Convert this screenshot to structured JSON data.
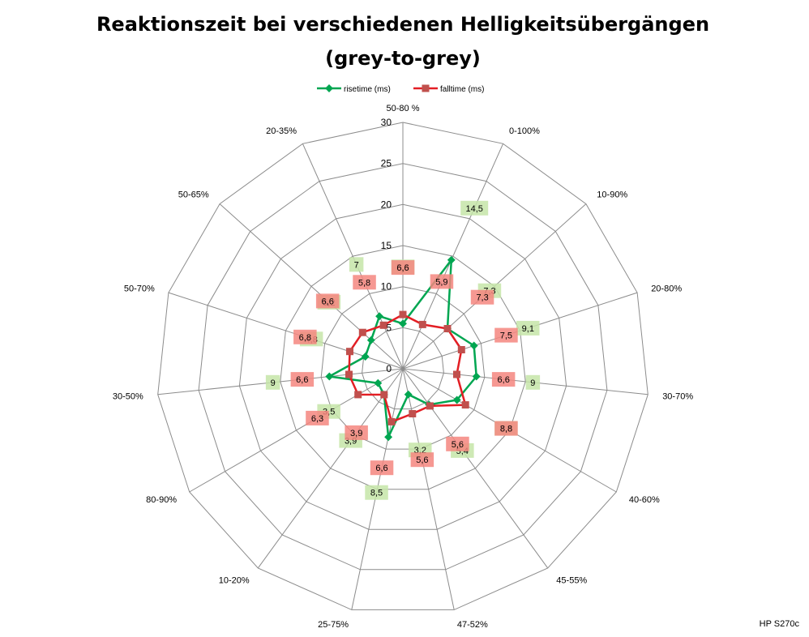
{
  "chart_data": {
    "type": "radar",
    "title": "Reaktionszeit bei verschiedenen Helligkeitsübergängen",
    "subtitle": "(grey-to-grey)",
    "categories": [
      "50-80 %",
      "0-100%",
      "10-90%",
      "20-80%",
      "30-70%",
      "40-60%",
      "45-55%",
      "47-52%",
      "25-75%",
      "10-20%",
      "80-90%",
      "30-50%",
      "50-70%",
      "50-65%",
      "20-35%"
    ],
    "ticks": [
      "0",
      "5",
      "10",
      "15",
      "20",
      "25",
      "30"
    ],
    "rmax": 30,
    "grid": true,
    "legend_position": "top",
    "series": [
      {
        "name": "risetime (ms)",
        "color": "#00a651",
        "label_bg": "#c6e5a8",
        "marker": "diamond",
        "values": [
          5.5,
          14.5,
          7.3,
          9.1,
          9,
          7.6,
          5.4,
          3.2,
          8.5,
          3.9,
          3.5,
          9,
          4.8,
          5.2,
          7
        ],
        "labels": [
          "5,5",
          "14,5",
          "7,3",
          "9,1",
          "9",
          "7,6",
          "5,4",
          "3,2",
          "8,5",
          "3,9",
          "3,5",
          "9",
          "4,8",
          "5,2",
          "7"
        ]
      },
      {
        "name": "falltime (ms)",
        "color": "#e31e24",
        "marker_color": "#c0504d",
        "label_bg": "#f4867f",
        "marker": "square",
        "values": [
          6.6,
          5.9,
          7.3,
          7.5,
          6.6,
          8.8,
          5.6,
          5.6,
          6.6,
          3.9,
          6.3,
          6.6,
          6.8,
          6.6,
          5.8
        ],
        "labels": [
          "6,6",
          "5,9",
          "7,3",
          "7,5",
          "6,6",
          "8,8",
          "5,6",
          "5,6",
          "6,6",
          "3,9",
          "6,3",
          "6,6",
          "6,8",
          "6,6",
          "5,8"
        ]
      }
    ]
  },
  "credit": "HP S270c"
}
